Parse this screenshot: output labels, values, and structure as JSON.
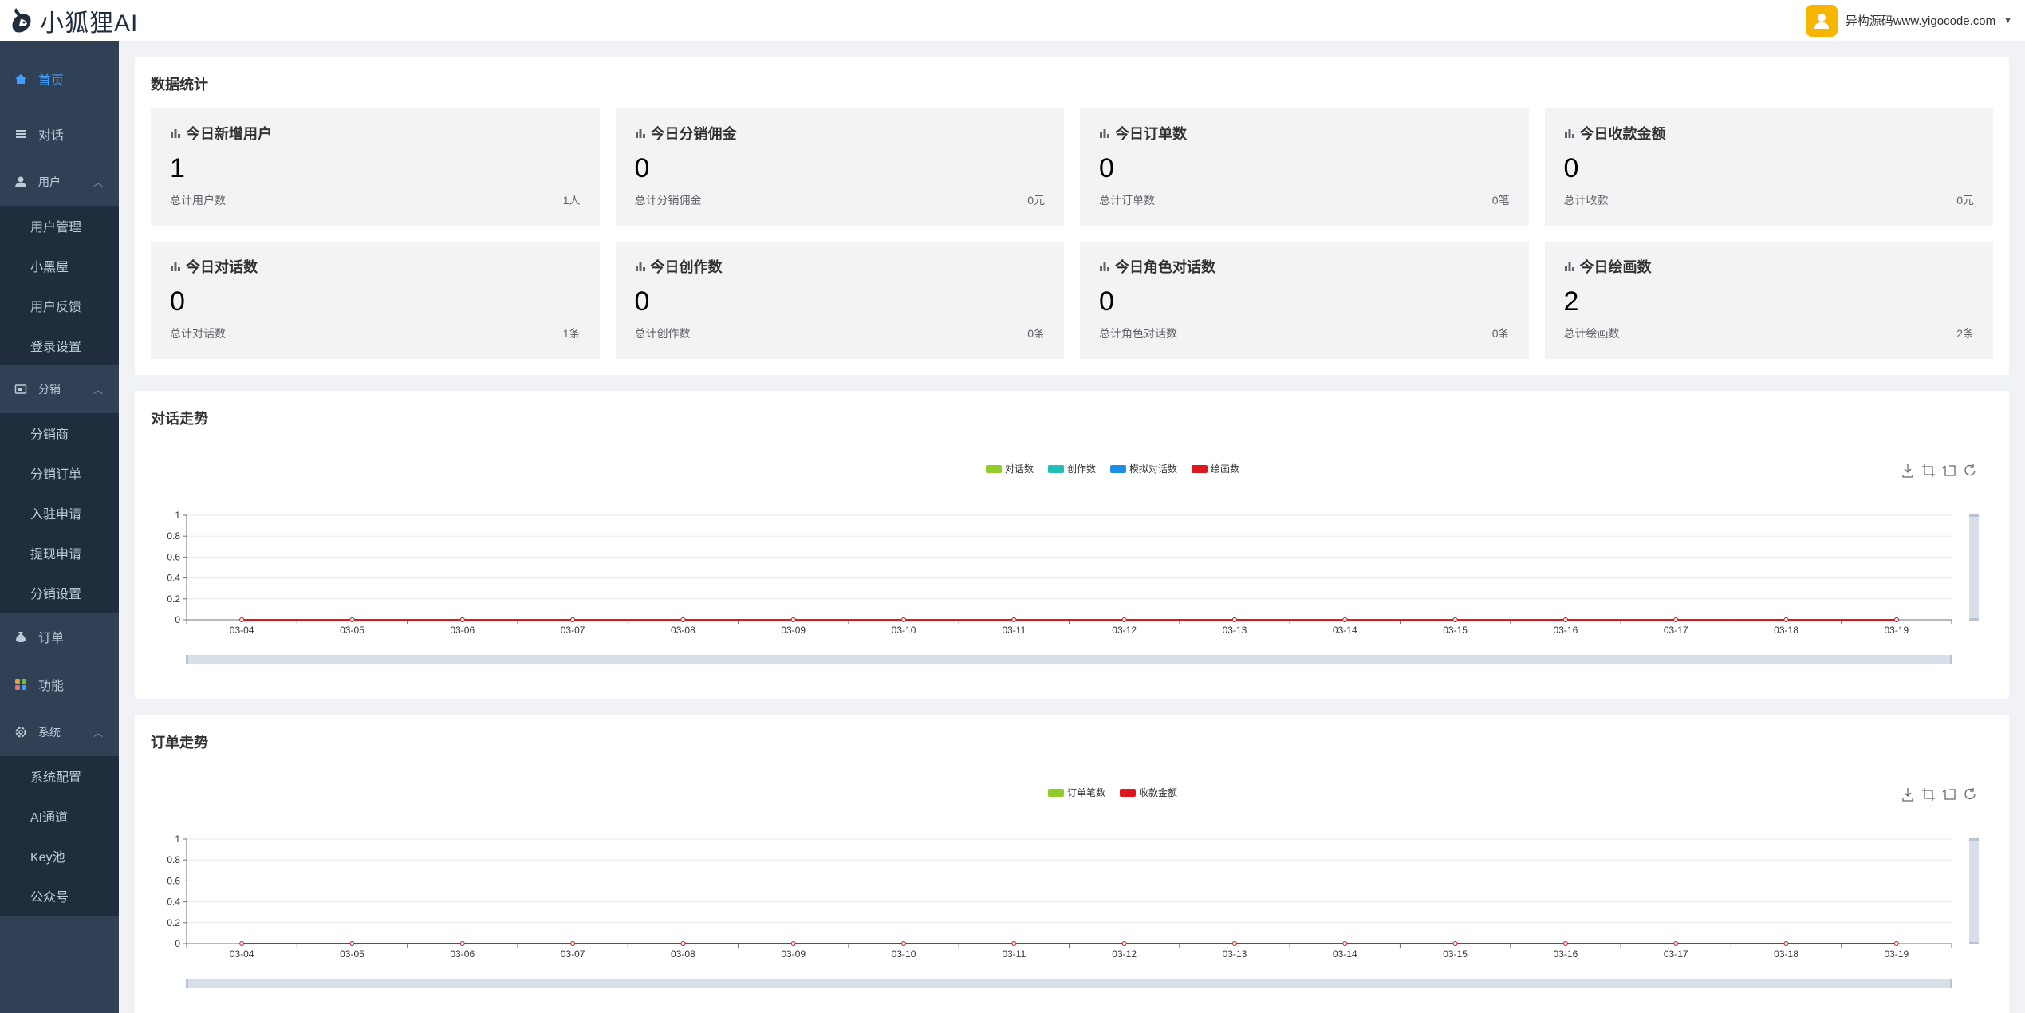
{
  "header": {
    "logo_text": "小狐狸AI",
    "user_name": "异构源码www.yigocode.com"
  },
  "sidebar": {
    "items": [
      {
        "label": "首页",
        "icon": "home-icon",
        "active": true
      },
      {
        "label": "对话",
        "icon": "list-icon"
      },
      {
        "label": "用户",
        "icon": "user-icon",
        "expanded": true,
        "children": [
          "用户管理",
          "小黑屋",
          "用户反馈",
          "登录设置"
        ]
      },
      {
        "label": "分销",
        "icon": "distribution-icon",
        "expanded": true,
        "children": [
          "分销商",
          "分销订单",
          "入驻申请",
          "提现申请",
          "分销设置"
        ]
      },
      {
        "label": "订单",
        "icon": "money-bag-icon"
      },
      {
        "label": "功能",
        "icon": "apps-icon"
      },
      {
        "label": "系统",
        "icon": "gear-icon",
        "expanded": true,
        "children": [
          "系统配置",
          "AI通道",
          "Key池",
          "公众号"
        ]
      }
    ]
  },
  "stats": {
    "title": "数据统计",
    "cards": [
      {
        "title": "今日新增用户",
        "value": "1",
        "foot_label": "总计用户数",
        "foot_value": "1人"
      },
      {
        "title": "今日分销佣金",
        "value": "0",
        "foot_label": "总计分销佣金",
        "foot_value": "0元"
      },
      {
        "title": "今日订单数",
        "value": "0",
        "foot_label": "总计订单数",
        "foot_value": "0笔"
      },
      {
        "title": "今日收款金额",
        "value": "0",
        "foot_label": "总计收款",
        "foot_value": "0元"
      },
      {
        "title": "今日对话数",
        "value": "0",
        "foot_label": "总计对话数",
        "foot_value": "1条"
      },
      {
        "title": "今日创作数",
        "value": "0",
        "foot_label": "总计创作数",
        "foot_value": "0条"
      },
      {
        "title": "今日角色对话数",
        "value": "0",
        "foot_label": "总计角色对话数",
        "foot_value": "0条"
      },
      {
        "title": "今日绘画数",
        "value": "2",
        "foot_label": "总计绘画数",
        "foot_value": "2条"
      }
    ]
  },
  "chart_data": [
    {
      "type": "line",
      "title": "对话走势",
      "categories": [
        "03-04",
        "03-05",
        "03-06",
        "03-07",
        "03-08",
        "03-09",
        "03-10",
        "03-11",
        "03-12",
        "03-13",
        "03-14",
        "03-15",
        "03-16",
        "03-17",
        "03-18",
        "03-19"
      ],
      "series": [
        {
          "name": "对话数",
          "color": "#91cc2b",
          "values": [
            0,
            0,
            0,
            0,
            0,
            0,
            0,
            0,
            0,
            0,
            0,
            0,
            0,
            0,
            0,
            0
          ]
        },
        {
          "name": "创作数",
          "color": "#1fbfb8",
          "values": [
            0,
            0,
            0,
            0,
            0,
            0,
            0,
            0,
            0,
            0,
            0,
            0,
            0,
            0,
            0,
            0
          ]
        },
        {
          "name": "模拟对话数",
          "color": "#1a8fe3",
          "values": [
            0,
            0,
            0,
            0,
            0,
            0,
            0,
            0,
            0,
            0,
            0,
            0,
            0,
            0,
            0,
            0
          ]
        },
        {
          "name": "绘画数",
          "color": "#e0161f",
          "values": [
            0,
            0,
            0,
            0,
            0,
            0,
            0,
            0,
            0,
            0,
            0,
            0,
            0,
            0,
            0,
            0
          ]
        }
      ],
      "yticks": [
        "0",
        "0.2",
        "0.4",
        "0.6",
        "0.8",
        "1"
      ],
      "ylim": [
        0,
        1
      ],
      "legend": "top-center",
      "grid": true
    },
    {
      "type": "line",
      "title": "订单走势",
      "categories": [
        "03-04",
        "03-05",
        "03-06",
        "03-07",
        "03-08",
        "03-09",
        "03-10",
        "03-11",
        "03-12",
        "03-13",
        "03-14",
        "03-15",
        "03-16",
        "03-17",
        "03-18",
        "03-19"
      ],
      "series": [
        {
          "name": "订单笔数",
          "color": "#91cc2b",
          "values": [
            0,
            0,
            0,
            0,
            0,
            0,
            0,
            0,
            0,
            0,
            0,
            0,
            0,
            0,
            0,
            0
          ]
        },
        {
          "name": "收款金额",
          "color": "#e0161f",
          "values": [
            0,
            0,
            0,
            0,
            0,
            0,
            0,
            0,
            0,
            0,
            0,
            0,
            0,
            0,
            0,
            0
          ]
        }
      ],
      "yticks": [
        "0",
        "0.2",
        "0.4",
        "0.6",
        "0.8",
        "1"
      ],
      "ylim": [
        0,
        1
      ],
      "legend": "top-center",
      "grid": true
    }
  ],
  "toolbox_icons": [
    "download-icon",
    "zoom-select-icon",
    "zoom-reset-icon",
    "refresh-icon"
  ]
}
